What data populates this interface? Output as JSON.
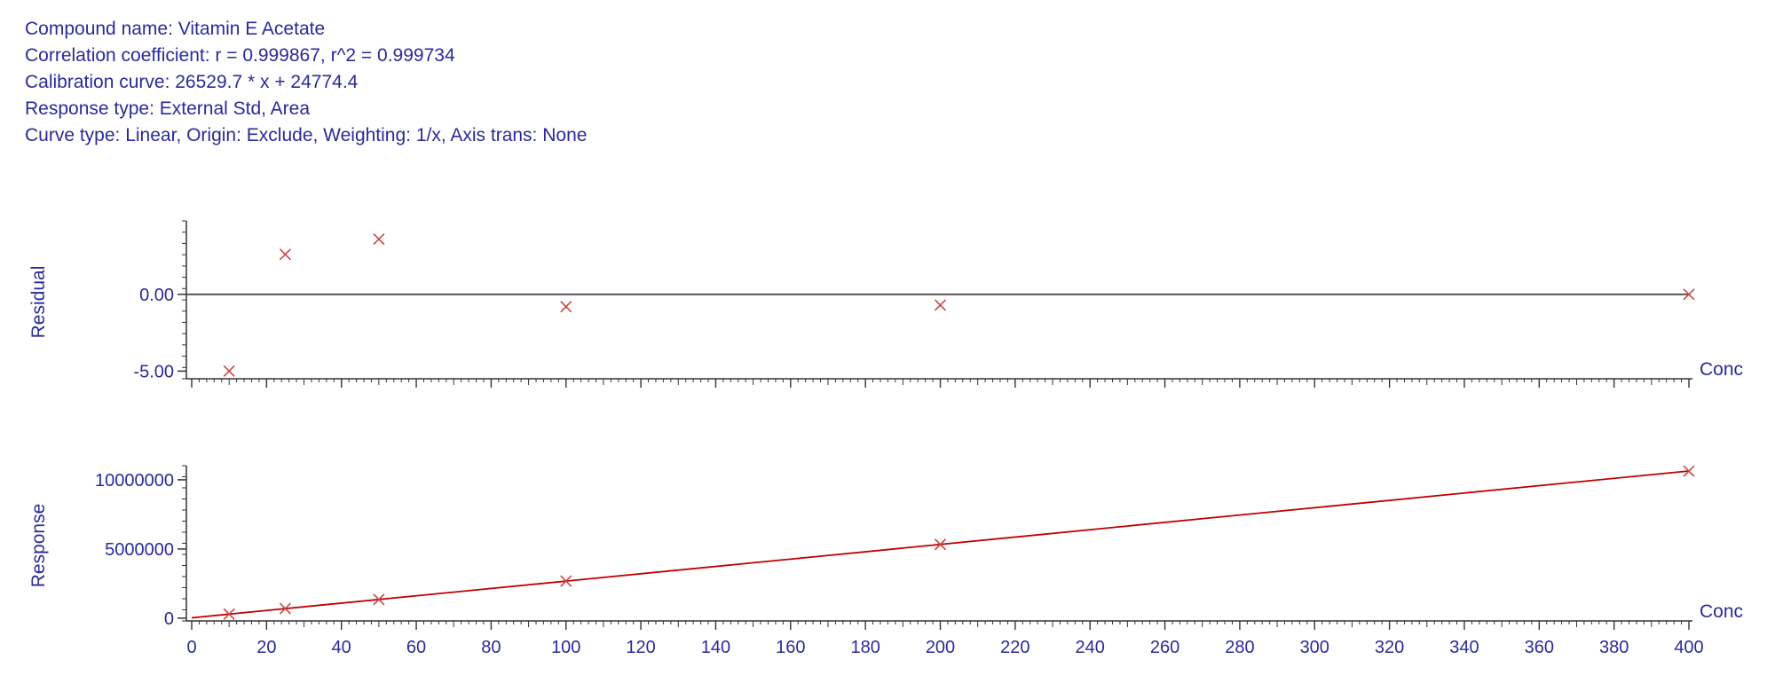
{
  "header": {
    "compound_name": "Compound name: Vitamin E Acetate",
    "correlation": "Correlation coefficient: r = 0.999867, r^2 = 0.999734",
    "calibration": "Calibration curve: 26529.7 * x + 24774.4",
    "response_type": "Response type: External Std, Area",
    "curve_type": "Curve type: Linear, Origin: Exclude, Weighting: 1/x, Axis trans: None"
  },
  "colors": {
    "text": "#2a2a9a",
    "axis": "#333333",
    "marker": "#cc4444",
    "fit_line": "#c00000",
    "zero_line": "#555555"
  },
  "chart_data": [
    {
      "type": "scatter",
      "ylabel": "Residual",
      "xlabel": "Conc",
      "xlim": [
        0,
        400
      ],
      "ylim": [
        -5.5,
        4.5
      ],
      "ytick_labels": [
        "0.00",
        "-5.00"
      ],
      "ytick_values": [
        0,
        -5
      ],
      "zero_line": true,
      "x": [
        10,
        25,
        50,
        100,
        200,
        400
      ],
      "y": [
        -5.0,
        2.6,
        3.6,
        -0.8,
        -0.7,
        0.0
      ]
    },
    {
      "type": "line",
      "ylabel": "Response",
      "xlabel": "Conc",
      "xlim": [
        0,
        400
      ],
      "ylim": [
        -200000,
        10700000
      ],
      "ytick_labels": [
        "10000000",
        "5000000",
        "0"
      ],
      "ytick_values": [
        10000000,
        5000000,
        0
      ],
      "xtick_labels": [
        "0",
        "20",
        "40",
        "60",
        "80",
        "100",
        "120",
        "140",
        "160",
        "180",
        "200",
        "220",
        "240",
        "260",
        "280",
        "300",
        "320",
        "340",
        "360",
        "380",
        "400"
      ],
      "xtick_values": [
        0,
        20,
        40,
        60,
        80,
        100,
        120,
        140,
        160,
        180,
        200,
        220,
        240,
        260,
        280,
        300,
        320,
        340,
        360,
        380,
        400
      ],
      "fit": {
        "slope": 26529.7,
        "intercept": 24774.4
      },
      "x": [
        10,
        25,
        50,
        100,
        200,
        400
      ],
      "y": [
        290000,
        690000,
        1350000,
        2680000,
        5330000,
        10630000
      ]
    }
  ]
}
